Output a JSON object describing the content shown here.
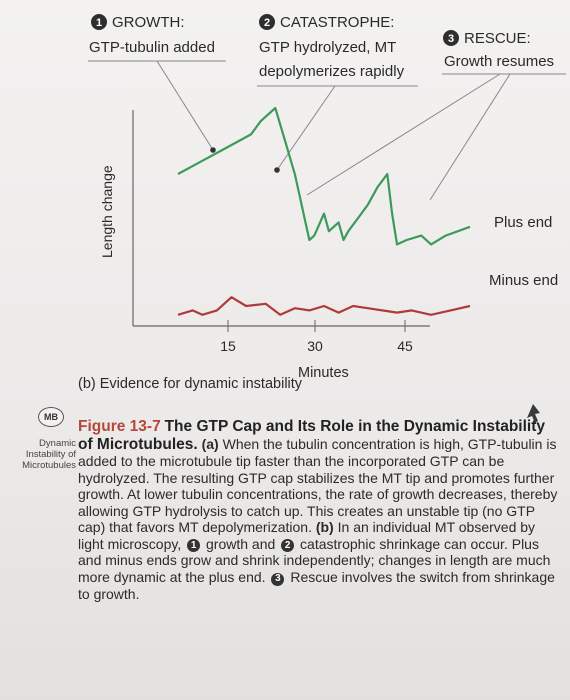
{
  "annotations": [
    {
      "num": "1",
      "title": "GROWTH:",
      "body": "GTP-tubulin added"
    },
    {
      "num": "2",
      "title": "CATASTROPHE:",
      "body_line1": "GTP hydrolyzed, MT",
      "body_line2": "depolymerizes rapidly"
    },
    {
      "num": "3",
      "title": "RESCUE:",
      "body": "Growth resumes"
    }
  ],
  "chart_data": {
    "type": "line",
    "ylabel": "Length change",
    "xlabel": "Minutes",
    "xticks": [
      "15",
      "30",
      "45"
    ],
    "series": [
      {
        "name": "Plus end",
        "color": "#3c9a5a",
        "x": [
          0,
          5,
          10,
          15,
          17,
          20,
          22,
          24,
          25,
          26,
          27,
          28,
          30,
          31,
          33,
          34,
          35,
          37,
          39,
          41,
          43,
          44,
          45,
          47,
          50,
          52,
          55,
          60
        ],
        "y": [
          40,
          46,
          52,
          58,
          64,
          70,
          55,
          40,
          30,
          20,
          10,
          12,
          22,
          14,
          18,
          10,
          14,
          20,
          26,
          34,
          40,
          22,
          8,
          10,
          12,
          8,
          12,
          16
        ]
      },
      {
        "name": "Minus end",
        "color": "#b03a3a",
        "x": [
          0,
          3,
          5,
          8,
          11,
          14,
          18,
          21,
          24,
          27,
          30,
          33,
          36,
          39,
          42,
          45,
          48,
          52,
          56,
          60
        ],
        "y": [
          -24,
          -22,
          -24,
          -22,
          -16,
          -20,
          -19,
          -24,
          -21,
          -22,
          -20,
          -23,
          -20,
          -21,
          -22,
          -23,
          -22,
          -24,
          -22,
          -20
        ]
      }
    ],
    "marker_labels": {
      "growth_point": "1",
      "catastrophe_point": "2",
      "rescue_point": "3"
    }
  },
  "subcaption": "(b) Evidence for dynamic instability",
  "caption": {
    "badge": "MB",
    "side_note_lines": [
      "Dynamic",
      "Instability of",
      "Microtubules"
    ],
    "figure_label": "Figure 13-7",
    "figure_title": "The GTP Cap and Its Role in the Dynamic Instability of Microtubules.",
    "body_a": " When the tubulin concentration is high, GTP-tubulin is added to the microtubule tip faster than the in­corporated GTP can be hydrolyzed. The resulting GTP cap stabilizes the MT tip and promotes further growth. At lower tubulin concentra­tions, the rate of growth decreases, thereby allowing GTP hydrolysis to catch up. This creates an unstable tip (no GTP cap) that favors MT depolymerization. ",
    "part_a": "(a)",
    "part_b": "(b)",
    "body_b1": " In an individual MT observed by light micros­copy, ",
    "body_b2": " growth and ",
    "body_b3": " catastrophic shrinkage can occur. Plus and minus ends grow and shrink independently; changes in length are much more dynamic at the plus end. ",
    "body_b4": " Rescue involves the switch from shrinkage to growth.",
    "n1": "1",
    "n2": "2",
    "n3": "3"
  }
}
